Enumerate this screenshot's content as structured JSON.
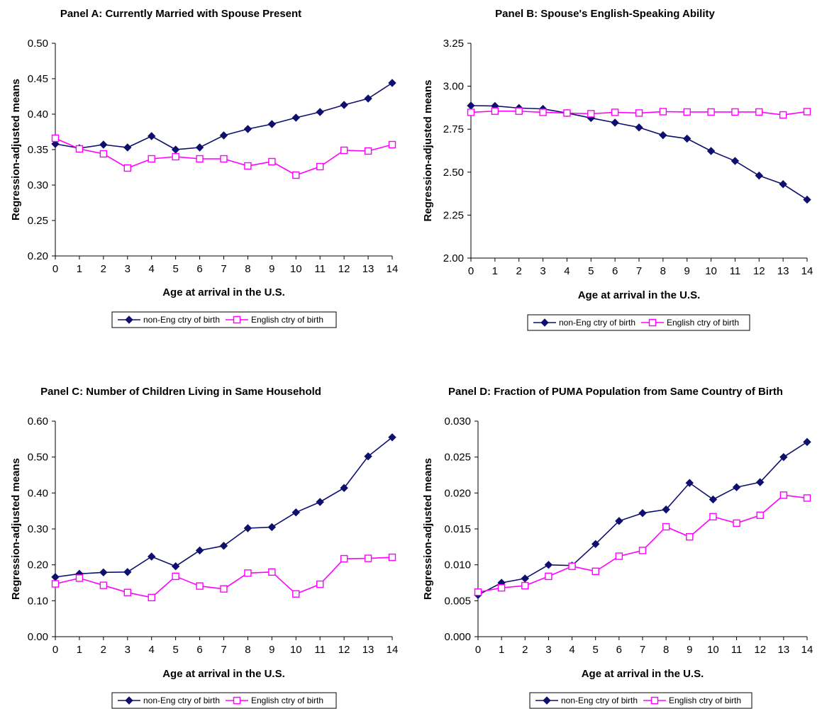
{
  "colors": {
    "non_eng": "#0f0f6e",
    "english": "#ff00ff",
    "axis": "#000000"
  },
  "chart_data": [
    {
      "id": "a",
      "type": "line",
      "title": "Panel A: Currently Married with Spouse Present",
      "xlabel": "Age at arrival in the U.S.",
      "ylabel": "Regression-adjusted means",
      "x": [
        0,
        1,
        2,
        3,
        4,
        5,
        6,
        7,
        8,
        9,
        10,
        11,
        12,
        13,
        14
      ],
      "ylim": [
        0.2,
        0.5
      ],
      "yticks": [
        "0.20",
        "0.25",
        "0.30",
        "0.35",
        "0.40",
        "0.45",
        "0.50"
      ],
      "grid": false,
      "legend_position": "bottom",
      "series": [
        {
          "name": "non-Eng ctry of birth",
          "marker": "diamond",
          "values": [
            0.358,
            0.352,
            0.357,
            0.353,
            0.369,
            0.35,
            0.353,
            0.37,
            0.379,
            0.386,
            0.395,
            0.403,
            0.413,
            0.422,
            0.444
          ]
        },
        {
          "name": "English ctry of birth",
          "marker": "square",
          "values": [
            0.366,
            0.351,
            0.344,
            0.324,
            0.337,
            0.34,
            0.337,
            0.337,
            0.327,
            0.333,
            0.314,
            0.326,
            0.349,
            0.348,
            0.357
          ]
        }
      ]
    },
    {
      "id": "b",
      "type": "line",
      "title": "Panel B: Spouse's English-Speaking Ability",
      "xlabel": "Age at arrival in the U.S.",
      "ylabel": "Regression-adjusted means",
      "x": [
        0,
        1,
        2,
        3,
        4,
        5,
        6,
        7,
        8,
        9,
        10,
        11,
        12,
        13,
        14
      ],
      "ylim": [
        2.0,
        3.25
      ],
      "yticks": [
        "2.00",
        "2.25",
        "2.50",
        "2.75",
        "3.00",
        "3.25"
      ],
      "grid": false,
      "legend_position": "bottom",
      "series": [
        {
          "name": "non-Eng ctry of birth",
          "marker": "diamond",
          "values": [
            2.887,
            2.885,
            2.873,
            2.868,
            2.844,
            2.815,
            2.788,
            2.76,
            2.715,
            2.695,
            2.623,
            2.565,
            2.48,
            2.43,
            2.34
          ]
        },
        {
          "name": "English ctry of birth",
          "marker": "square",
          "values": [
            2.848,
            2.855,
            2.855,
            2.848,
            2.844,
            2.84,
            2.848,
            2.844,
            2.852,
            2.85,
            2.85,
            2.85,
            2.85,
            2.833,
            2.852
          ]
        }
      ]
    },
    {
      "id": "c",
      "type": "line",
      "title": "Panel C: Number of Children Living in Same Household",
      "xlabel": "Age at arrival in the U.S.",
      "ylabel": "Regression-adjusted means",
      "x": [
        0,
        1,
        2,
        3,
        4,
        5,
        6,
        7,
        8,
        9,
        10,
        11,
        12,
        13,
        14
      ],
      "ylim": [
        0.0,
        0.6
      ],
      "yticks": [
        "0.00",
        "0.10",
        "0.20",
        "0.30",
        "0.40",
        "0.50",
        "0.60"
      ],
      "grid": false,
      "legend_position": "bottom",
      "series": [
        {
          "name": "non-Eng ctry of birth",
          "marker": "diamond",
          "values": [
            0.166,
            0.175,
            0.179,
            0.18,
            0.223,
            0.196,
            0.24,
            0.253,
            0.302,
            0.305,
            0.346,
            0.375,
            0.414,
            0.502,
            0.555
          ]
        },
        {
          "name": "English ctry of birth",
          "marker": "square",
          "values": [
            0.147,
            0.163,
            0.143,
            0.123,
            0.109,
            0.168,
            0.141,
            0.133,
            0.177,
            0.18,
            0.119,
            0.146,
            0.217,
            0.218,
            0.221
          ]
        }
      ]
    },
    {
      "id": "d",
      "type": "line",
      "title": "Panel D: Fraction of  PUMA Population from Same Country of Birth",
      "xlabel": "Age at arrival in the U.S.",
      "ylabel": "Regression-adjusted means",
      "x": [
        0,
        1,
        2,
        3,
        4,
        5,
        6,
        7,
        8,
        9,
        10,
        11,
        12,
        13,
        14
      ],
      "ylim": [
        0.0,
        0.03
      ],
      "yticks": [
        "0.000",
        "0.005",
        "0.010",
        "0.015",
        "0.020",
        "0.025",
        "0.030"
      ],
      "grid": false,
      "legend_position": "bottom",
      "series": [
        {
          "name": "non-Eng ctry of birth",
          "marker": "diamond",
          "values": [
            0.0058,
            0.0075,
            0.0081,
            0.01,
            0.0099,
            0.0129,
            0.0161,
            0.0172,
            0.0177,
            0.0214,
            0.0191,
            0.0208,
            0.0215,
            0.025,
            0.0271
          ]
        },
        {
          "name": "English ctry of birth",
          "marker": "square",
          "values": [
            0.0062,
            0.0068,
            0.0071,
            0.0084,
            0.0098,
            0.0091,
            0.0112,
            0.012,
            0.0153,
            0.0139,
            0.0167,
            0.0158,
            0.0169,
            0.0197,
            0.0193
          ]
        }
      ]
    }
  ]
}
